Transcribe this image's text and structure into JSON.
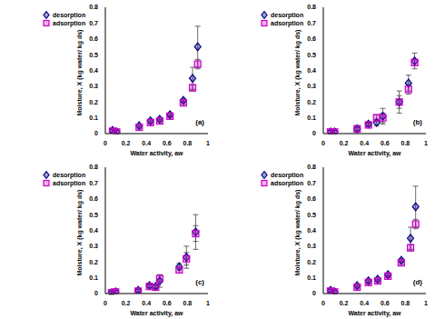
{
  "chart_data": [
    {
      "type": "scatter",
      "title": "(a)",
      "x_label": "Water activity, aw",
      "y_label": "Moisture, X (kg water/ kg ds)",
      "xlim": [
        0,
        1
      ],
      "xticks": [
        0,
        0.2,
        0.4,
        0.6,
        0.8,
        1
      ],
      "ylim": [
        0,
        0.8
      ],
      "yticks": [
        0,
        0.1,
        0.2,
        0.3,
        0.4,
        0.5,
        0.6,
        0.7,
        0.8
      ],
      "legend": "upper left",
      "x": [
        0.07,
        0.11,
        0.33,
        0.44,
        0.53,
        0.63,
        0.76,
        0.85,
        0.9
      ],
      "series": [
        {
          "name": "desorption",
          "color": "#000080",
          "marker": "diamond",
          "values": [
            0.02,
            0.01,
            0.05,
            0.08,
            0.09,
            0.12,
            0.21,
            0.35,
            0.55
          ],
          "errors": [
            0.01,
            0.01,
            0.01,
            0.01,
            0.01,
            0.01,
            0.01,
            0.07,
            0.13
          ]
        },
        {
          "name": "adsorption",
          "color": "#cc00cc",
          "marker": "square",
          "values": [
            0.015,
            0.01,
            0.04,
            0.07,
            0.08,
            0.11,
            0.195,
            0.29,
            0.44
          ],
          "errors": [
            0.01,
            0.01,
            0.01,
            0.01,
            0.01,
            0.01,
            0.01,
            0.02,
            0.03
          ]
        }
      ]
    },
    {
      "type": "scatter",
      "title": "(b)",
      "x_label": "Water activity, aw",
      "y_label": "Moisture, X (kg water/ kg ds)",
      "xlim": [
        0,
        1
      ],
      "xticks": [
        0,
        0.2,
        0.4,
        0.6,
        0.8,
        1
      ],
      "ylim": [
        0,
        0.8
      ],
      "yticks": [
        0,
        0.1,
        0.2,
        0.3,
        0.4,
        0.5,
        0.6,
        0.7,
        0.8
      ],
      "legend": "upper left",
      "x": [
        0.07,
        0.11,
        0.33,
        0.44,
        0.52,
        0.58,
        0.74,
        0.83,
        0.89
      ],
      "series": [
        {
          "name": "desorption",
          "color": "#000080",
          "marker": "diamond",
          "values": [
            0.01,
            0.01,
            0.03,
            0.06,
            0.07,
            0.11,
            0.2,
            0.32,
            0.46
          ],
          "errors": [
            0.01,
            0.01,
            0.02,
            0.01,
            0.02,
            0.05,
            0.07,
            0.05,
            0.05
          ]
        },
        {
          "name": "adsorption",
          "color": "#cc00cc",
          "marker": "square",
          "values": [
            0.01,
            0.01,
            0.03,
            0.055,
            0.1,
            0.1,
            0.2,
            0.28,
            0.45
          ],
          "errors": [
            0.01,
            0.01,
            0.01,
            0.01,
            0.02,
            0.03,
            0.04,
            0.03,
            0.02
          ]
        }
      ]
    },
    {
      "type": "scatter",
      "title": "(c)",
      "x_label": "Water activity, aw",
      "y_label": "Moisture, X (kg water/ kg ds)",
      "xlim": [
        0,
        1
      ],
      "xticks": [
        0,
        0.2,
        0.4,
        0.6,
        0.8,
        1
      ],
      "ylim": [
        0,
        0.8
      ],
      "yticks": [
        0,
        0.1,
        0.2,
        0.3,
        0.4,
        0.5,
        0.6,
        0.7,
        0.8
      ],
      "legend": "upper left",
      "x": [
        0.06,
        0.1,
        0.32,
        0.43,
        0.49,
        0.53,
        0.72,
        0.79,
        0.88
      ],
      "series": [
        {
          "name": "desorption",
          "color": "#000080",
          "marker": "diamond",
          "values": [
            0.005,
            0.01,
            0.02,
            0.05,
            0.045,
            0.08,
            0.17,
            0.23,
            0.39
          ],
          "errors": [
            0.01,
            0.01,
            0.01,
            0.01,
            0.01,
            0.04,
            0.02,
            0.07,
            0.11
          ]
        },
        {
          "name": "adsorption",
          "color": "#cc00cc",
          "marker": "square",
          "values": [
            0.005,
            0.01,
            0.015,
            0.045,
            0.04,
            0.095,
            0.15,
            0.22,
            0.38
          ],
          "errors": [
            0.01,
            0.01,
            0.01,
            0.01,
            0.01,
            0.02,
            0.02,
            0.04,
            0.05
          ]
        }
      ]
    },
    {
      "type": "scatter",
      "title": "(d)",
      "x_label": "Water activity, aw",
      "y_label": "Moisture, X (kg water/ kg ds)",
      "xlim": [
        0,
        1
      ],
      "xticks": [
        0,
        0.2,
        0.4,
        0.6,
        0.8,
        1
      ],
      "ylim": [
        0,
        0.8
      ],
      "yticks": [
        0,
        0.1,
        0.2,
        0.3,
        0.4,
        0.5,
        0.6,
        0.7,
        0.8
      ],
      "legend": "upper left",
      "x": [
        0.07,
        0.11,
        0.33,
        0.44,
        0.53,
        0.63,
        0.76,
        0.85,
        0.9
      ],
      "series": [
        {
          "name": "desorption",
          "color": "#000080",
          "marker": "diamond",
          "values": [
            0.02,
            0.01,
            0.05,
            0.08,
            0.09,
            0.12,
            0.21,
            0.35,
            0.55
          ],
          "errors": [
            0.01,
            0.01,
            0.01,
            0.01,
            0.01,
            0.01,
            0.01,
            0.07,
            0.13
          ]
        },
        {
          "name": "adsorption",
          "color": "#cc00cc",
          "marker": "square",
          "values": [
            0.015,
            0.01,
            0.04,
            0.07,
            0.08,
            0.11,
            0.195,
            0.29,
            0.44
          ],
          "errors": [
            0.01,
            0.01,
            0.01,
            0.01,
            0.01,
            0.01,
            0.01,
            0.02,
            0.03
          ]
        }
      ]
    }
  ]
}
